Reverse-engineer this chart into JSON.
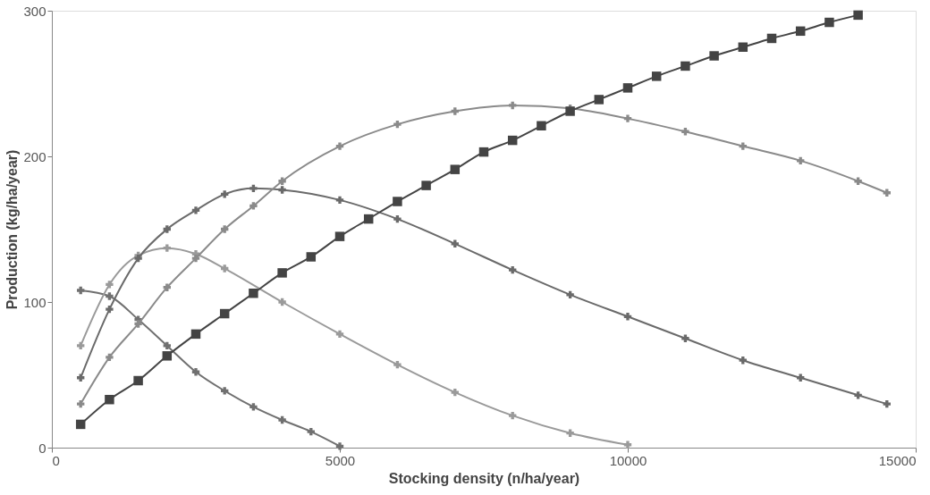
{
  "chart_data": {
    "type": "line",
    "xlabel": "Stocking density (n/ha/year)",
    "ylabel": "Production (kg/ha/year)",
    "xlim": [
      0,
      15000
    ],
    "ylim": [
      0,
      300
    ],
    "xticks": [
      0,
      5000,
      10000,
      15000
    ],
    "yticks": [
      0,
      100,
      200,
      300
    ],
    "grid": false,
    "series": [
      {
        "color": "#707070",
        "marker": "cross",
        "x": [
          500,
          1000,
          1500,
          2000,
          2500,
          3000,
          3500,
          4000,
          4500,
          5000
        ],
        "values": [
          108,
          104,
          88,
          70,
          52,
          39,
          28,
          19,
          11,
          1
        ]
      },
      {
        "color": "#9a9a9a",
        "marker": "cross",
        "x": [
          500,
          1000,
          1500,
          2000,
          2500,
          3000,
          4000,
          5000,
          6000,
          7000,
          8000,
          9000,
          10000
        ],
        "values": [
          70,
          112,
          132,
          137,
          133,
          123,
          100,
          78,
          57,
          38,
          22,
          10,
          2
        ]
      },
      {
        "color": "#6a6a6a",
        "marker": "cross",
        "x": [
          500,
          1000,
          1500,
          2000,
          2500,
          3000,
          3500,
          4000,
          5000,
          6000,
          7000,
          8000,
          9000,
          10000,
          11000,
          12000,
          13000,
          14000,
          14500
        ],
        "values": [
          48,
          95,
          130,
          150,
          163,
          174,
          178,
          177,
          170,
          157,
          140,
          122,
          105,
          90,
          75,
          60,
          48,
          36,
          30
        ]
      },
      {
        "color": "#8a8a8a",
        "marker": "cross",
        "x": [
          500,
          1000,
          1500,
          2000,
          2500,
          3000,
          3500,
          4000,
          5000,
          6000,
          7000,
          8000,
          9000,
          10000,
          11000,
          12000,
          13000,
          14000,
          14500
        ],
        "values": [
          30,
          62,
          85,
          110,
          130,
          150,
          166,
          183,
          207,
          222,
          231,
          235,
          233,
          226,
          217,
          207,
          197,
          183,
          175
        ]
      },
      {
        "color": "#444444",
        "marker": "square",
        "x": [
          500,
          1000,
          1500,
          2000,
          2500,
          3000,
          3500,
          4000,
          4500,
          5000,
          5500,
          6000,
          6500,
          7000,
          7500,
          8000,
          8500,
          9000,
          9500,
          10000,
          10500,
          11000,
          11500,
          12000,
          12500,
          13000,
          13500,
          14000
        ],
        "values": [
          16,
          33,
          46,
          63,
          78,
          92,
          106,
          120,
          131,
          145,
          157,
          169,
          180,
          191,
          203,
          211,
          221,
          231,
          239,
          247,
          255,
          262,
          269,
          275,
          281,
          286,
          292,
          297
        ]
      }
    ]
  }
}
